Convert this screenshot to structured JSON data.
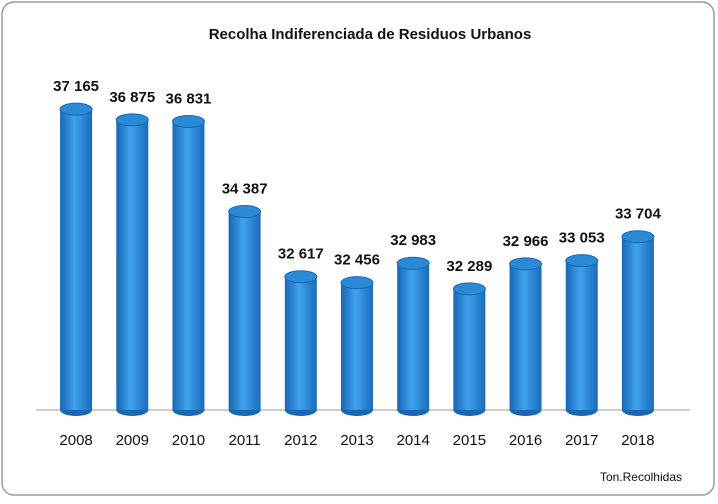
{
  "chart_data": {
    "type": "bar",
    "title": "Recolha Indiferenciada de Residuos Urbanos",
    "ylabel": "Ton.Recolhidas",
    "categories": [
      "2008",
      "2009",
      "2010",
      "2011",
      "2012",
      "2013",
      "2014",
      "2015",
      "2016",
      "2017",
      "2018"
    ],
    "values": [
      37165,
      36875,
      36831,
      34387,
      32617,
      32456,
      32983,
      32289,
      32966,
      33053,
      33704
    ],
    "value_labels": [
      "37 165",
      "36 875",
      "36 831",
      "34 387",
      "32 617",
      "32 456",
      "32 983",
      "32 289",
      "32 966",
      "33 053",
      "33 704"
    ],
    "color": "#2b8ad6",
    "ylim": [
      29000,
      38500
    ]
  }
}
